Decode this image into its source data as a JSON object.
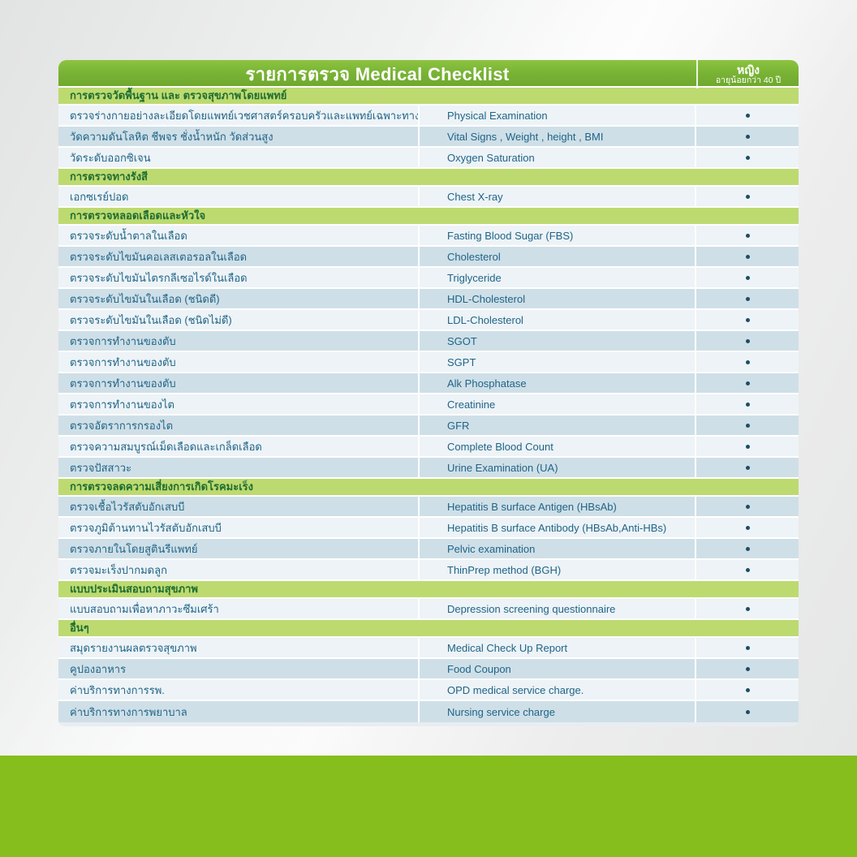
{
  "table": {
    "title": "รายการตรวจ Medical Checklist",
    "column_header": {
      "line1": "หญิง",
      "line2": "อายุน้อยกว่า 40 ปี"
    },
    "sections": [
      {
        "title": "การตรวจวัดพื้นฐาน และ ตรวจสุขภาพโดยแพทย์",
        "rows": [
          {
            "th": "ตรวจร่างกายอย่างละเอียดโดยแพทย์เวชศาสตร์ครอบครัวและแพทย์เฉพาะทาง",
            "en": "Physical Examination",
            "included": true
          },
          {
            "th": "วัดความดันโลหิต ชีพจร ชั่งน้ำหนัก วัดส่วนสูง",
            "en": "Vital Signs , Weight , height , BMI",
            "included": true
          },
          {
            "th": "วัดระดับออกซิเจน",
            "en": "Oxygen Saturation",
            "included": true
          }
        ]
      },
      {
        "title": "การตรวจทางรังสี",
        "rows": [
          {
            "th": "เอกซเรย์ปอด",
            "en": "Chest X-ray",
            "included": true
          }
        ]
      },
      {
        "title": "การตรวจหลอดเลือดและหัวใจ",
        "rows": [
          {
            "th": "ตรวจระดับน้ำตาลในเลือด",
            "en": "Fasting Blood Sugar (FBS)",
            "included": true
          },
          {
            "th": "ตรวจระดับไขมันคอเลสเตอรอลในเลือด",
            "en": "Cholesterol",
            "included": true
          },
          {
            "th": "ตรวจระดับไขมันไตรกลีเซอไรด์ในเลือด",
            "en": "Triglyceride",
            "included": true
          },
          {
            "th": "ตรวจระดับไขมันในเลือด (ชนิดดี)",
            "en": "HDL-Cholesterol",
            "included": true
          },
          {
            "th": "ตรวจระดับไขมันในเลือด (ชนิดไม่ดี)",
            "en": "LDL-Cholesterol",
            "included": true
          },
          {
            "th": "ตรวจการทำงานของตับ",
            "en": "SGOT",
            "included": true
          },
          {
            "th": "ตรวจการทำงานของตับ",
            "en": "SGPT",
            "included": true
          },
          {
            "th": "ตรวจการทำงานของตับ",
            "en": "Alk Phosphatase",
            "included": true
          },
          {
            "th": "ตรวจการทำงานของไต",
            "en": "Creatinine",
            "included": true
          },
          {
            "th": "ตรวจอัตราการกรองไต",
            "en": "GFR",
            "included": true
          },
          {
            "th": "ตรวจความสมบูรณ์เม็ดเลือดและเกล็ดเลือด",
            "en": "Complete Blood Count",
            "included": true
          },
          {
            "th": "ตรวจปัสสาวะ",
            "en": "Urine Examination (UA)",
            "included": true
          }
        ]
      },
      {
        "title": "การตรวจลดความเสี่ยงการเกิดโรคมะเร็ง",
        "rows": [
          {
            "th": "ตรวจเชื้อไวรัสตับอักเสบบี",
            "en": "Hepatitis B surface Antigen (HBsAb)",
            "included": true
          },
          {
            "th": "ตรวจภูมิต้านทานไวรัสตับอักเสบบี",
            "en": "Hepatitis B surface Antibody (HBsAb,Anti-HBs)",
            "included": true
          },
          {
            "th": "ตรวจภายในโดยสูตินรีแพทย์",
            "en": "Pelvic examination",
            "included": true
          },
          {
            "th": "ตรวจมะเร็งปากมดลูก",
            "en": "ThinPrep method (BGH)",
            "included": true
          }
        ]
      },
      {
        "title": "แบบประเมินสอบถามสุขภาพ",
        "rows": [
          {
            "th": "แบบสอบถามเพื่อหาภาวะซึมเศร้า",
            "en": "Depression screening questionnaire",
            "included": true
          }
        ]
      },
      {
        "title": "อื่นๆ",
        "rows": [
          {
            "th": "สมุดรายงานผลตรวจสุขภาพ",
            "en": "Medical Check Up Report",
            "included": true
          },
          {
            "th": "คูปองอาหาร",
            "en": "Food Coupon",
            "included": true
          },
          {
            "th": "ค่าบริการทางการรพ.",
            "en": "OPD medical service charge.",
            "included": true
          },
          {
            "th": "ค่าบริการทางการพยาบาล",
            "en": "Nursing service charge",
            "included": true
          }
        ]
      }
    ]
  },
  "colors": {
    "header_green_top": "#8cc440",
    "header_green_bottom": "#6fa82e",
    "section_green": "#bdda70",
    "section_text": "#1f6d32",
    "row_light": "#edf3f6",
    "row_dark": "#cfdfe7",
    "row_text": "#1f6488",
    "dot_color": "#1d4d68",
    "bottom_bar_green": "#86be1e"
  }
}
